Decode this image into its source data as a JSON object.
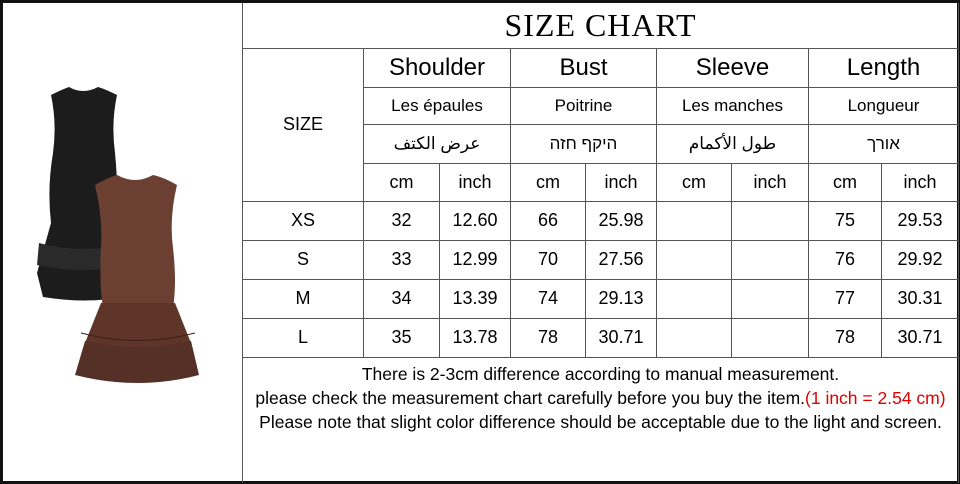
{
  "title": "SIZE CHART",
  "size_header": "SIZE",
  "columns": [
    {
      "en": "Shoulder",
      "fr": "Les épaules",
      "other": "عرض الكتف",
      "other_rtl": false
    },
    {
      "en": "Bust",
      "fr": "Poitrine",
      "other": "הזח ףקיה",
      "other_rtl": true
    },
    {
      "en": "Sleeve",
      "fr": "Les manches",
      "other": "طول الأكمام",
      "other_rtl": false
    },
    {
      "en": "Length",
      "fr": "Longueur",
      "other": "ךרוא",
      "other_rtl": true
    }
  ],
  "units": [
    "cm",
    "inch"
  ],
  "rows": [
    {
      "size": "XS",
      "values": [
        "32",
        "12.60",
        "66",
        "25.98",
        "",
        "",
        "75",
        "29.53"
      ]
    },
    {
      "size": "S",
      "values": [
        "33",
        "12.99",
        "70",
        "27.56",
        "",
        "",
        "76",
        "29.92"
      ]
    },
    {
      "size": "M",
      "values": [
        "34",
        "13.39",
        "74",
        "29.13",
        "",
        "",
        "77",
        "30.31"
      ]
    },
    {
      "size": "L",
      "values": [
        "35",
        "13.78",
        "78",
        "30.71",
        "",
        "",
        "78",
        "30.71"
      ]
    }
  ],
  "notes": {
    "line1": "There is 2-3cm difference according to manual measurement.",
    "line2": "please check the measurement chart carefully before you buy the item.",
    "conversion": "(1 inch = 2.54 cm)",
    "line3": "Please note that slight color difference should be acceptable due to the light and screen."
  },
  "colors": {
    "black_dress": "#1c1c1c",
    "brown_dress": "#6b4032",
    "accent_red": "#e00000"
  }
}
